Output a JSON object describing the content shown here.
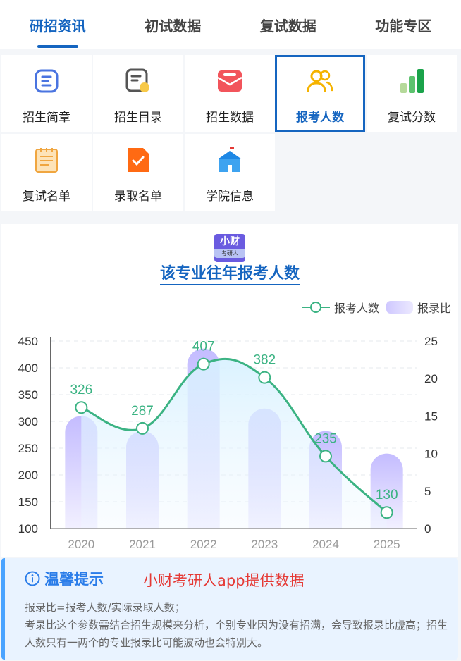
{
  "tabs": [
    {
      "label": "研招资讯",
      "active": true
    },
    {
      "label": "初试数据",
      "active": false
    },
    {
      "label": "复试数据",
      "active": false
    },
    {
      "label": "功能专区",
      "active": false
    }
  ],
  "grid": [
    {
      "label": "招生简章",
      "icon": "brochure-icon"
    },
    {
      "label": "招生目录",
      "icon": "catalog-icon"
    },
    {
      "label": "招生数据",
      "icon": "mailbox-icon"
    },
    {
      "label": "报考人数",
      "icon": "users-icon",
      "active": true
    },
    {
      "label": "复试分数",
      "icon": "bar-signal-icon"
    },
    {
      "label": "复试名单",
      "icon": "notepad-icon"
    },
    {
      "label": "录取名单",
      "icon": "check-document-icon"
    },
    {
      "label": "学院信息",
      "icon": "school-icon"
    }
  ],
  "logo": {
    "line1": "小财",
    "line2": "考研人"
  },
  "chart_title": "该专业往年报考人数",
  "chart_data": {
    "type": "bar+line",
    "categories": [
      "2020",
      "2021",
      "2022",
      "2023",
      "2024",
      "2025"
    ],
    "series": [
      {
        "name": "报考人数",
        "type": "line",
        "axis": "left",
        "values": [
          326,
          287,
          407,
          382,
          235,
          130
        ],
        "color": "#3bb383"
      },
      {
        "name": "报录比",
        "type": "bar",
        "axis": "right",
        "values": [
          15,
          13,
          24,
          16,
          13,
          10
        ],
        "color": "#c9c2ff"
      }
    ],
    "y_left": {
      "min": 100,
      "max": 450,
      "ticks": [
        "450",
        "400",
        "350",
        "300",
        "250",
        "200",
        "150",
        "100"
      ]
    },
    "y_right": {
      "min": 0,
      "max": 25,
      "ticks": [
        "25",
        "20",
        "15",
        "10",
        "5",
        "0"
      ]
    },
    "grid": true,
    "legend": "top-right"
  },
  "tip": {
    "title": "温馨提示",
    "source": "小财考研人app提供数据",
    "line1": "报录比=报考人数/实际录取人数；",
    "line2": "考录比这个参数需结合招生规模来分析，个别专业因为没有招满，会导致报录比虚高；招生人数只有一两个的专业报录比可能波动也会特别大。"
  }
}
